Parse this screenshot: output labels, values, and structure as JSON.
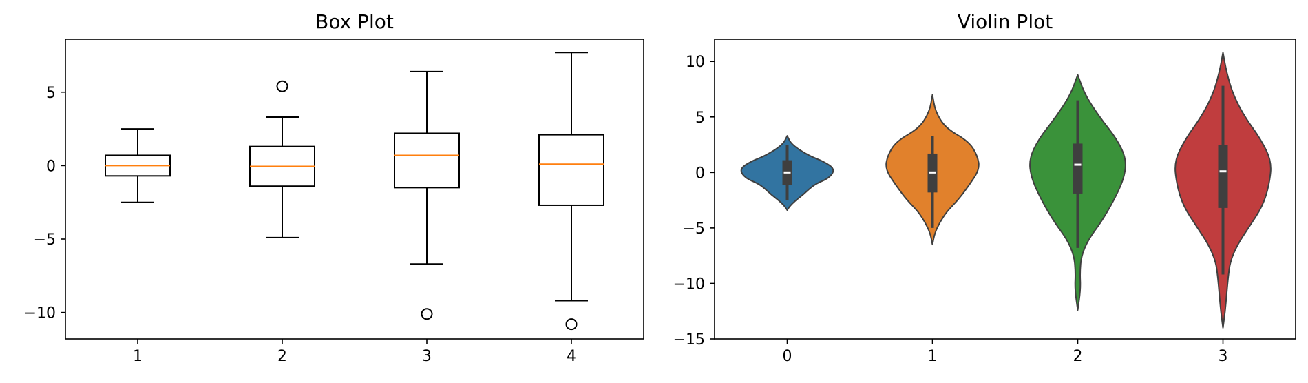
{
  "chart_data": [
    {
      "type": "box",
      "title": "Box Plot",
      "xlabel": "",
      "ylabel": "",
      "categories": [
        "1",
        "2",
        "3",
        "4"
      ],
      "ylim": [
        -11.8,
        8.6
      ],
      "yticks": [
        5,
        0,
        -5,
        -10
      ],
      "ytick_labels": [
        "5",
        "0",
        "−5",
        "−10"
      ],
      "grid": false,
      "boxes": [
        {
          "whislo": -2.5,
          "q1": -0.7,
          "med": 0.0,
          "q3": 0.7,
          "whishi": 2.5,
          "fliers": []
        },
        {
          "whislo": -4.9,
          "q1": -1.4,
          "med": -0.05,
          "q3": 1.3,
          "whishi": 3.3,
          "fliers": [
            5.4
          ]
        },
        {
          "whislo": -6.7,
          "q1": -1.5,
          "med": 0.7,
          "q3": 2.2,
          "whishi": 6.4,
          "fliers": [
            -10.1
          ]
        },
        {
          "whislo": -9.2,
          "q1": -2.7,
          "med": 0.1,
          "q3": 2.1,
          "whishi": 7.7,
          "fliers": [
            -10.8
          ]
        }
      ],
      "colors": {
        "box": "#000000",
        "median": "#ff7f0e"
      }
    },
    {
      "type": "violin",
      "title": "Violin Plot",
      "xlabel": "",
      "ylabel": "",
      "categories": [
        "0",
        "1",
        "2",
        "3"
      ],
      "ylim": [
        -15,
        12
      ],
      "yticks": [
        10,
        5,
        0,
        -5,
        -10,
        -15
      ],
      "ytick_labels": [
        "10",
        "5",
        "0",
        "−5",
        "−10",
        "−15"
      ],
      "grid": false,
      "violins": [
        {
          "color": "#3274a1",
          "ymin": -3.4,
          "ymax": 3.3,
          "median": 0.0,
          "q1": -1.1,
          "q3": 1.1,
          "whislo": -2.5,
          "whishi": 2.5,
          "density_y": [
            3.3,
            2.5,
            1.5,
            1.0,
            0.3,
            -0.5,
            -1.0,
            -1.5,
            -2.0,
            -2.5,
            -3.0,
            -3.4
          ],
          "density_w": [
            0.0,
            0.06,
            0.3,
            0.5,
            0.66,
            0.58,
            0.4,
            0.3,
            0.22,
            0.12,
            0.04,
            0.0
          ]
        },
        {
          "color": "#e1812c",
          "ymin": -6.5,
          "ymax": 7.0,
          "median": 0.0,
          "q1": -1.8,
          "q3": 1.7,
          "whislo": -5.0,
          "whishi": 3.3,
          "density_y": [
            7.0,
            5.5,
            4.0,
            2.8,
            1.5,
            0.3,
            -1.2,
            -2.5,
            -3.5,
            -4.5,
            -5.5,
            -6.5
          ],
          "density_w": [
            0.0,
            0.04,
            0.18,
            0.5,
            0.62,
            0.65,
            0.5,
            0.35,
            0.2,
            0.1,
            0.03,
            0.0
          ]
        },
        {
          "color": "#3a923a",
          "ymin": -12.4,
          "ymax": 8.8,
          "median": 0.7,
          "q1": -1.9,
          "q3": 2.6,
          "whislo": -6.8,
          "whishi": 6.5,
          "density_y": [
            8.8,
            7.0,
            5.0,
            3.0,
            1.2,
            -0.5,
            -2.5,
            -4.5,
            -6.0,
            -7.5,
            -9.0,
            -10.5,
            -12.4
          ],
          "density_w": [
            0.0,
            0.1,
            0.3,
            0.54,
            0.67,
            0.64,
            0.5,
            0.32,
            0.15,
            0.05,
            0.03,
            0.04,
            0.0
          ]
        },
        {
          "color": "#c03d3e",
          "ymin": -14.0,
          "ymax": 10.8,
          "median": 0.1,
          "q1": -3.2,
          "q3": 2.5,
          "whislo": -9.2,
          "whishi": 7.8,
          "density_y": [
            10.8,
            9.0,
            7.0,
            5.0,
            3.0,
            1.0,
            -1.0,
            -3.0,
            -5.0,
            -6.5,
            -8.0,
            -9.5,
            -11.0,
            -12.5,
            -14.0
          ],
          "density_w": [
            0.0,
            0.05,
            0.14,
            0.3,
            0.52,
            0.67,
            0.64,
            0.55,
            0.35,
            0.2,
            0.1,
            0.07,
            0.05,
            0.03,
            0.0
          ]
        }
      ],
      "colors": {
        "outline": "#3f3f3f",
        "inner_box": "#3f3f3f",
        "median_marker": "#ffffff"
      }
    }
  ]
}
